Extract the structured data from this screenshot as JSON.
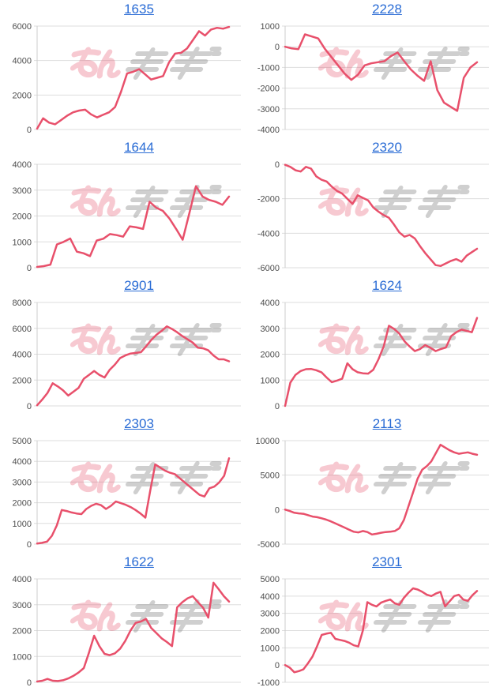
{
  "style": {
    "line_color": "#e8506b",
    "grid_color": "#dddddd",
    "axis_color": "#cccccc",
    "label_color": "#4d4d4d",
    "title_color": "#2a6cd5",
    "watermark_pink": "#e8506b",
    "watermark_gray": "#8a8a8a"
  },
  "watermark": {
    "text": "みんかぶ"
  },
  "chart_data": [
    {
      "type": "line",
      "title": "1635",
      "ylim": [
        0,
        6000
      ],
      "yticks": [
        6000,
        4000,
        2000,
        0
      ],
      "values": [
        50,
        650,
        400,
        300,
        550,
        800,
        1000,
        1100,
        1150,
        880,
        700,
        850,
        1000,
        1300,
        2200,
        3250,
        3350,
        3500,
        3200,
        2900,
        3000,
        3100,
        3900,
        4400,
        4450,
        4700,
        5200,
        5700,
        5450,
        5800,
        5900,
        5850,
        5950
      ]
    },
    {
      "type": "line",
      "title": "2228",
      "ylim": [
        -4000,
        1000
      ],
      "yticks": [
        1000,
        0,
        -1000,
        -2000,
        -3000,
        -4000
      ],
      "values": [
        0,
        -80,
        -120,
        600,
        500,
        400,
        -100,
        -500,
        -900,
        -1300,
        -1600,
        -1350,
        -900,
        -800,
        -750,
        -700,
        -450,
        -280,
        -700,
        -1100,
        -1400,
        -1650,
        -700,
        -2100,
        -2700,
        -2900,
        -3100,
        -1500,
        -1000,
        -750
      ]
    },
    {
      "type": "line",
      "title": "1644",
      "ylim": [
        0,
        4000
      ],
      "yticks": [
        4000,
        3000,
        2000,
        1000,
        0
      ],
      "values": [
        30,
        60,
        120,
        900,
        1000,
        1130,
        620,
        560,
        450,
        1050,
        1120,
        1300,
        1260,
        1200,
        1600,
        1560,
        1500,
        2550,
        2320,
        2200,
        1900,
        1500,
        1080,
        2100,
        3150,
        2750,
        2620,
        2550,
        2430,
        2750
      ]
    },
    {
      "type": "line",
      "title": "2320",
      "ylim": [
        -6000,
        0
      ],
      "yticks": [
        0,
        -2000,
        -4000,
        -6000
      ],
      "values": [
        -30,
        -150,
        -350,
        -420,
        -150,
        -250,
        -700,
        -900,
        -1000,
        -1300,
        -1550,
        -1700,
        -2000,
        -2300,
        -1800,
        -1950,
        -2100,
        -2500,
        -2750,
        -2950,
        -3100,
        -3500,
        -3950,
        -4200,
        -4100,
        -4300,
        -4750,
        -5150,
        -5500,
        -5850,
        -5900,
        -5750,
        -5600,
        -5500,
        -5650,
        -5300,
        -5100,
        -4900
      ]
    },
    {
      "type": "line",
      "title": "2901",
      "ylim": [
        0,
        8000
      ],
      "yticks": [
        8000,
        6000,
        4000,
        2000,
        0
      ],
      "values": [
        50,
        500,
        1000,
        1750,
        1500,
        1200,
        800,
        1100,
        1400,
        2100,
        2400,
        2700,
        2400,
        2200,
        2800,
        3200,
        3700,
        3900,
        4050,
        4100,
        4150,
        4600,
        5100,
        5500,
        5800,
        6150,
        5950,
        5700,
        5400,
        5150,
        4900,
        4500,
        4450,
        4300,
        3900,
        3600,
        3600,
        3450
      ]
    },
    {
      "type": "line",
      "title": "1624",
      "ylim": [
        0,
        4000
      ],
      "yticks": [
        4000,
        3000,
        2000,
        1000,
        0
      ],
      "values": [
        0,
        900,
        1200,
        1350,
        1420,
        1430,
        1380,
        1300,
        1100,
        920,
        980,
        1050,
        1650,
        1420,
        1300,
        1260,
        1250,
        1400,
        1800,
        2300,
        3100,
        2980,
        2800,
        2500,
        2300,
        2120,
        2200,
        2350,
        2250,
        2120,
        2200,
        2260,
        2700,
        2850,
        2950,
        2900,
        2850,
        3400
      ]
    },
    {
      "type": "line",
      "title": "2303",
      "ylim": [
        0,
        5000
      ],
      "yticks": [
        5000,
        4000,
        3000,
        2000,
        1000,
        0
      ],
      "values": [
        30,
        60,
        120,
        400,
        900,
        1650,
        1600,
        1530,
        1480,
        1450,
        1700,
        1850,
        1950,
        1880,
        1700,
        1850,
        2060,
        1980,
        1900,
        1790,
        1650,
        1480,
        1280,
        2600,
        3850,
        3700,
        3550,
        3450,
        3380,
        3180,
        2980,
        2780,
        2580,
        2380,
        2300,
        2700,
        2780,
        2980,
        3300,
        4150
      ]
    },
    {
      "type": "line",
      "title": "2113",
      "ylim": [
        -5000,
        10000
      ],
      "yticks": [
        10000,
        5000,
        0,
        -5000
      ],
      "values": [
        0,
        -200,
        -450,
        -550,
        -600,
        -800,
        -1000,
        -1100,
        -1250,
        -1450,
        -1700,
        -2000,
        -2300,
        -2600,
        -2900,
        -3200,
        -3300,
        -3100,
        -3250,
        -3600,
        -3500,
        -3350,
        -3250,
        -3200,
        -3100,
        -2700,
        -1500,
        500,
        2500,
        4500,
        5800,
        6300,
        7000,
        8200,
        9400,
        9000,
        8600,
        8300,
        8100,
        8200,
        8300,
        8100,
        7950
      ]
    },
    {
      "type": "line",
      "title": "1622",
      "ylim": [
        0,
        4000
      ],
      "yticks": [
        4000,
        3000,
        2000,
        1000,
        0
      ],
      "values": [
        30,
        60,
        130,
        60,
        50,
        80,
        150,
        250,
        380,
        550,
        1150,
        1800,
        1400,
        1100,
        1050,
        1120,
        1300,
        1600,
        2000,
        2300,
        2350,
        2450,
        2100,
        1900,
        1700,
        1560,
        1400,
        2900,
        3100,
        3250,
        3330,
        3100,
        2880,
        2500,
        3850,
        3600,
        3330,
        3120
      ]
    },
    {
      "type": "line",
      "title": "2301",
      "ylim": [
        -1000,
        5000
      ],
      "yticks": [
        5000,
        4000,
        3000,
        2000,
        1000,
        0,
        -1000
      ],
      "values": [
        0,
        -150,
        -420,
        -350,
        -250,
        100,
        500,
        1100,
        1750,
        1820,
        1870,
        1520,
        1460,
        1400,
        1300,
        1150,
        1080,
        2000,
        3650,
        3500,
        3400,
        3620,
        3720,
        3800,
        3580,
        3500,
        3900,
        4200,
        4450,
        4380,
        4250,
        4080,
        4000,
        4150,
        4250,
        3400,
        3700,
        4000,
        4080,
        3800,
        3720,
        4050,
        4300
      ]
    }
  ]
}
